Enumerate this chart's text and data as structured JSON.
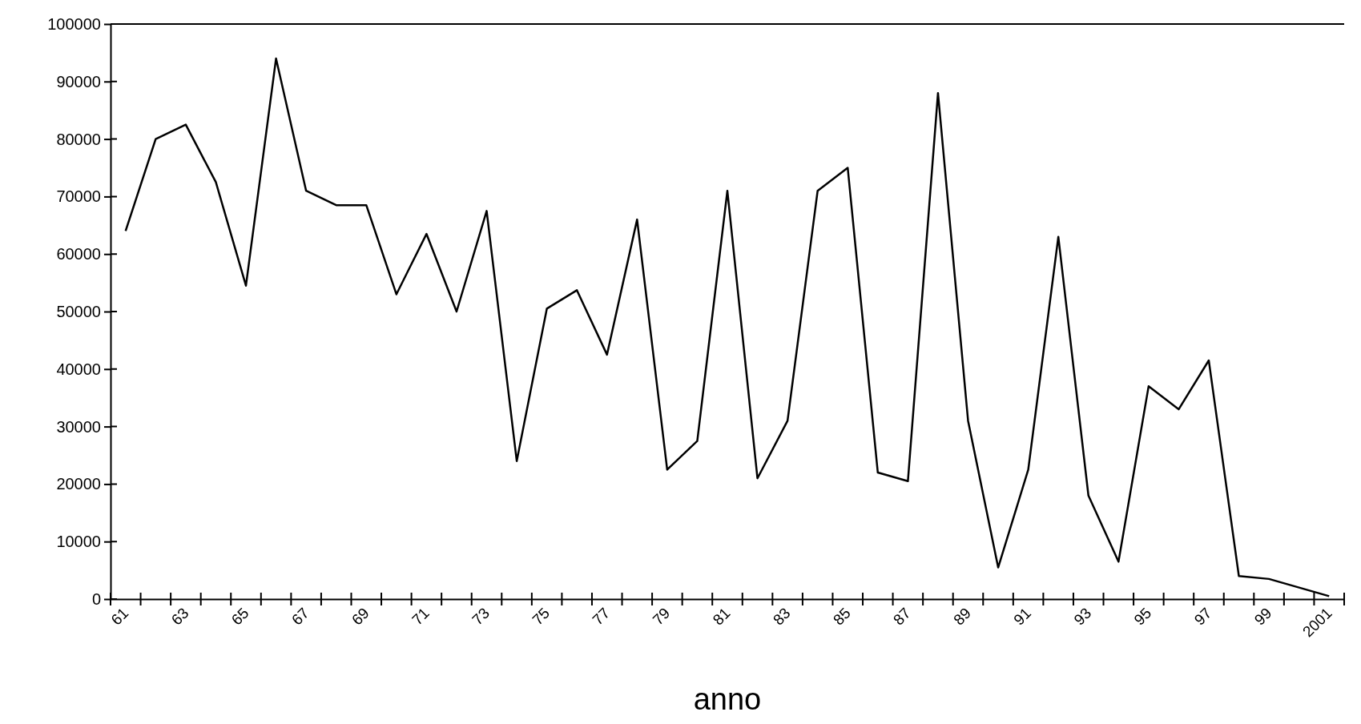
{
  "chart_data": {
    "type": "line",
    "xlabel": "anno",
    "categories": [
      "61",
      null,
      "63",
      null,
      "65",
      null,
      "67",
      null,
      "69",
      null,
      "71",
      null,
      "73",
      null,
      "75",
      null,
      "77",
      null,
      "79",
      null,
      "81",
      null,
      "83",
      null,
      "85",
      null,
      "87",
      null,
      "89",
      null,
      "91",
      null,
      "93",
      null,
      "95",
      null,
      "97",
      null,
      "99",
      null,
      "2001"
    ],
    "series": [
      {
        "color": "#000000",
        "values": [
          64000,
          80000,
          82500,
          72500,
          54500,
          94000,
          71000,
          68500,
          68500,
          53000,
          63500,
          50000,
          67500,
          24000,
          50500,
          53700,
          42500,
          66000,
          22500,
          27500,
          71000,
          21000,
          31000,
          71000,
          75000,
          22000,
          20500,
          88000,
          31000,
          5500,
          22500,
          63000,
          18000,
          6500,
          37000,
          33000,
          41500,
          4000,
          3500,
          2000,
          500
        ]
      }
    ],
    "ylim": [
      0,
      100000
    ],
    "yticks": [
      0,
      10000,
      20000,
      30000,
      40000,
      50000,
      60000,
      70000,
      80000,
      90000,
      100000
    ],
    "grid": false,
    "marker": "none",
    "line_style": "solid"
  }
}
